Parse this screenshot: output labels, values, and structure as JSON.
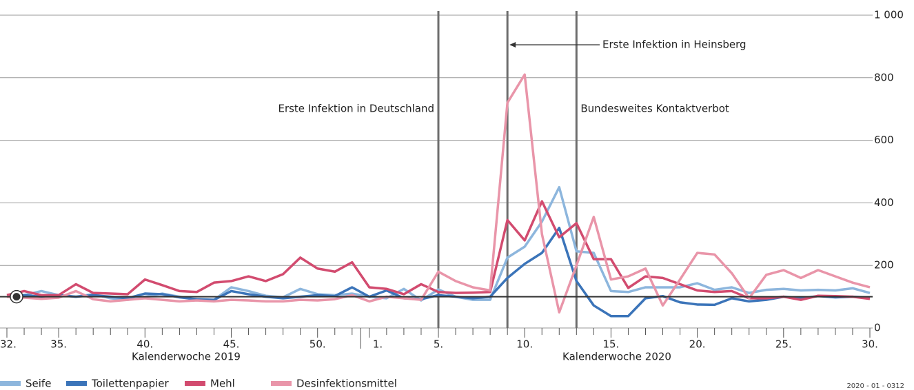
{
  "chart_data": {
    "type": "line",
    "categories": [
      "32.",
      null,
      null,
      "35.",
      null,
      null,
      null,
      null,
      "40.",
      null,
      null,
      null,
      null,
      "45.",
      null,
      null,
      null,
      null,
      "50.",
      null,
      null,
      "1.",
      null,
      null,
      null,
      "5.",
      null,
      null,
      null,
      null,
      "10.",
      null,
      null,
      null,
      null,
      "15.",
      null,
      null,
      null,
      null,
      "20.",
      null,
      null,
      null,
      null,
      "25.",
      null,
      null,
      null,
      null,
      "30."
    ],
    "x_group_labels": [
      "Kalenderwoche 2019",
      "Kalenderwoche 2020"
    ],
    "series": [
      {
        "name": "Seife",
        "color": "#8db6dd",
        "values": [
          100,
          105,
          118,
          105,
          100,
          108,
          95,
          90,
          100,
          110,
          100,
          90,
          90,
          130,
          118,
          103,
          98,
          125,
          108,
          105,
          110,
          100,
          95,
          125,
          88,
          123,
          100,
          90,
          90,
          225,
          260,
          340,
          450,
          245,
          240,
          118,
          115,
          130,
          130,
          130,
          143,
          122,
          130,
          112,
          122,
          125,
          120,
          122,
          120,
          127,
          112
        ]
      },
      {
        "name": "Toilettenpapier",
        "color": "#3b74b9",
        "values": [
          100,
          105,
          100,
          105,
          100,
          105,
          100,
          95,
          110,
          108,
          98,
          92,
          90,
          118,
          108,
          100,
          95,
          100,
          105,
          102,
          130,
          100,
          120,
          95,
          92,
          105,
          100,
          95,
          100,
          160,
          205,
          240,
          320,
          150,
          72,
          38,
          38,
          95,
          102,
          82,
          75,
          74,
          95,
          85,
          90,
          100,
          95,
          102,
          98,
          100,
          97
        ]
      },
      {
        "name": "Mehl",
        "color": "#d24b6f",
        "values": [
          105,
          118,
          105,
          105,
          140,
          112,
          110,
          108,
          155,
          137,
          118,
          115,
          145,
          150,
          165,
          150,
          172,
          225,
          190,
          180,
          210,
          130,
          125,
          108,
          140,
          115,
          112,
          113,
          115,
          345,
          280,
          405,
          290,
          335,
          220,
          220,
          128,
          165,
          160,
          140,
          120,
          115,
          118,
          95,
          95,
          100,
          90,
          103,
          102,
          100,
          93
        ]
      },
      {
        "name": "Desinfektionsmittel",
        "color": "#e995a9",
        "values": [
          100,
          97,
          93,
          97,
          118,
          92,
          85,
          90,
          95,
          90,
          85,
          88,
          85,
          90,
          88,
          85,
          85,
          90,
          88,
          92,
          105,
          85,
          100,
          95,
          90,
          180,
          150,
          130,
          120,
          720,
          810,
          300,
          50,
          200,
          355,
          155,
          165,
          190,
          72,
          155,
          240,
          235,
          175,
          95,
          170,
          185,
          160,
          185,
          165,
          145,
          130
        ]
      }
    ],
    "reference_line": 100,
    "ylim": [
      0,
      1000
    ],
    "yticks": [
      0,
      200,
      400,
      600,
      800,
      {
        "value": 1000,
        "label": "1 000"
      }
    ],
    "grid": true,
    "annotations": [
      "Erste Infektion in Deutschland",
      "Erste Infektion in Heinsberg",
      "Bundesweites Kontaktverbot"
    ],
    "footer": "2020 - 01 - 0312"
  }
}
